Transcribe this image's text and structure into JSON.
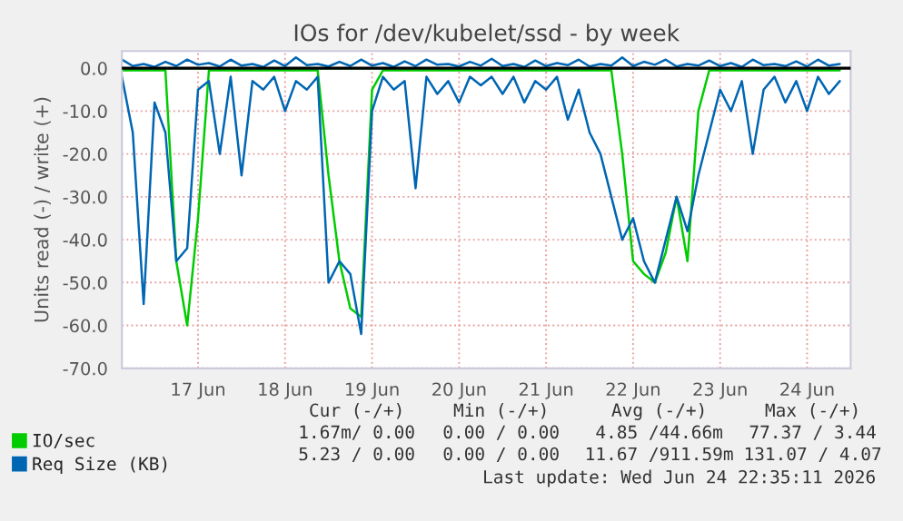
{
  "chart_data": {
    "type": "line",
    "title": "IOs for /dev/kubelet/ssd - by week",
    "ylabel": "Units read (-) / write (+)",
    "x": [
      "2026-06-16T15:00",
      "2026-06-16T18:00",
      "2026-06-16T21:00",
      "2026-06-17T00:00",
      "2026-06-17T03:00",
      "2026-06-17T06:00",
      "2026-06-17T09:00",
      "2026-06-17T12:00",
      "2026-06-17T15:00",
      "2026-06-17T18:00",
      "2026-06-17T21:00",
      "2026-06-18T00:00",
      "2026-06-18T03:00",
      "2026-06-18T06:00",
      "2026-06-18T09:00",
      "2026-06-18T12:00",
      "2026-06-18T15:00",
      "2026-06-18T18:00",
      "2026-06-18T21:00",
      "2026-06-19T00:00",
      "2026-06-19T03:00",
      "2026-06-19T06:00",
      "2026-06-19T09:00",
      "2026-06-19T12:00",
      "2026-06-19T15:00",
      "2026-06-19T18:00",
      "2026-06-19T21:00",
      "2026-06-20T00:00",
      "2026-06-20T03:00",
      "2026-06-20T06:00",
      "2026-06-20T09:00",
      "2026-06-20T12:00",
      "2026-06-20T15:00",
      "2026-06-20T18:00",
      "2026-06-20T21:00",
      "2026-06-21T00:00",
      "2026-06-21T03:00",
      "2026-06-21T06:00",
      "2026-06-21T09:00",
      "2026-06-21T12:00",
      "2026-06-21T15:00",
      "2026-06-21T18:00",
      "2026-06-21T21:00",
      "2026-06-22T00:00",
      "2026-06-22T03:00",
      "2026-06-22T06:00",
      "2026-06-22T09:00",
      "2026-06-22T12:00",
      "2026-06-22T15:00",
      "2026-06-22T18:00",
      "2026-06-22T21:00",
      "2026-06-23T00:00",
      "2026-06-23T03:00",
      "2026-06-23T06:00",
      "2026-06-23T09:00",
      "2026-06-23T12:00",
      "2026-06-23T15:00",
      "2026-06-23T18:00",
      "2026-06-23T21:00",
      "2026-06-24T00:00",
      "2026-06-24T03:00",
      "2026-06-24T06:00",
      "2026-06-24T09:00",
      "2026-06-24T12:00",
      "2026-06-24T15:00",
      "2026-06-24T18:00",
      "2026-06-24T21:00"
    ],
    "series": [
      {
        "name": "IO/sec",
        "color": "#00cc00",
        "values": [
          -0.5,
          -0.5,
          -0.5,
          -0.5,
          -0.5,
          -45,
          -60,
          -35,
          -0.5,
          -0.5,
          -0.5,
          -0.5,
          -0.5,
          -0.5,
          -0.5,
          -0.5,
          -0.5,
          -0.5,
          -0.5,
          -25,
          -45,
          -56,
          -58,
          -5,
          -0.5,
          -0.5,
          -0.5,
          -0.5,
          -0.5,
          -0.5,
          -0.5,
          -0.5,
          -0.5,
          -0.5,
          -0.5,
          -0.5,
          -0.5,
          -0.5,
          -0.5,
          -0.5,
          -0.5,
          -0.5,
          -0.5,
          -0.5,
          -0.5,
          -0.5,
          -20,
          -45,
          -48,
          -50,
          -43,
          -30,
          -45,
          -10,
          -0.5,
          -0.5,
          -0.5,
          -0.5,
          -0.5,
          -0.5,
          -0.5,
          -0.5,
          -0.5,
          -0.5,
          -0.5,
          -0.5,
          -0.5
        ]
      },
      {
        "color": "#00cc00",
        "values": [
          0,
          0,
          0,
          0,
          0,
          0,
          0,
          0,
          0,
          0,
          0,
          0,
          0,
          0,
          0,
          0,
          0,
          0,
          0,
          0,
          0,
          0,
          0,
          0,
          0,
          0,
          0,
          0,
          0,
          0,
          0,
          0,
          0,
          0,
          0,
          0,
          0,
          0,
          0,
          0,
          0,
          0,
          0,
          0,
          0,
          0,
          0,
          0,
          0,
          0,
          0,
          0,
          0,
          0,
          0,
          0,
          0,
          0,
          0,
          0,
          0,
          0,
          0,
          0,
          0,
          0,
          0
        ]
      },
      {
        "name": "Req Size (KB)",
        "color": "#0066b3",
        "values": [
          -2,
          -15,
          -55,
          -8,
          -15,
          -45,
          -42,
          -5,
          -3,
          -20,
          -2,
          -25,
          -3,
          -5,
          -2,
          -10,
          -3,
          -5,
          -2,
          -50,
          -45,
          -48,
          -62,
          -10,
          -2,
          -5,
          -3,
          -28,
          -2,
          -6,
          -3,
          -8,
          -2,
          -4,
          -2,
          -6,
          -2,
          -8,
          -3,
          -5,
          -2,
          -12,
          -5,
          -15,
          -20,
          -30,
          -40,
          -35,
          -45,
          -50,
          -40,
          -30,
          -38,
          -25,
          -15,
          -5,
          -10,
          -3,
          -20,
          -5,
          -2,
          -8,
          -3,
          -10,
          -2,
          -6,
          -3
        ]
      },
      {
        "color": "#0066b3",
        "values": [
          2,
          0.5,
          1,
          0.3,
          1.5,
          0.5,
          2,
          0.8,
          1.2,
          0.4,
          2,
          0.6,
          1,
          0.3,
          1.8,
          0.5,
          2.5,
          0.7,
          1,
          0.4,
          1.5,
          0.5,
          2,
          0.6,
          1.2,
          0.3,
          1.6,
          0.5,
          2,
          0.8,
          1,
          0.4,
          1.5,
          0.6,
          2.2,
          0.5,
          1,
          0.3,
          1.8,
          0.5,
          1.2,
          0.7,
          2,
          0.4,
          1,
          0.6,
          2.5,
          0.5,
          1.5,
          0.8,
          2,
          0.4,
          1,
          0.6,
          1.8,
          0.5,
          1.2,
          0.3,
          2,
          0.7,
          1,
          0.5,
          1.6,
          0.4,
          2,
          0.6,
          1
        ]
      }
    ],
    "xlim": [
      "2026-06-16T15:00",
      "2026-06-25T00:00"
    ],
    "xticks": [
      {
        "value": "2026-06-17T12:00",
        "label": "17 Jun"
      },
      {
        "value": "2026-06-18T12:00",
        "label": "18 Jun"
      },
      {
        "value": "2026-06-19T12:00",
        "label": "19 Jun"
      },
      {
        "value": "2026-06-20T12:00",
        "label": "20 Jun"
      },
      {
        "value": "2026-06-21T12:00",
        "label": "21 Jun"
      },
      {
        "value": "2026-06-22T12:00",
        "label": "22 Jun"
      },
      {
        "value": "2026-06-23T12:00",
        "label": "23 Jun"
      },
      {
        "value": "2026-06-24T12:00",
        "label": "24 Jun"
      }
    ],
    "ylim": [
      -70,
      4
    ],
    "yticks": [
      {
        "value": -70,
        "label": "-70.0"
      },
      {
        "value": -60,
        "label": "-60.0"
      },
      {
        "value": -50,
        "label": "-50.0"
      },
      {
        "value": -40,
        "label": "-40.0"
      },
      {
        "value": -30,
        "label": "-30.0"
      },
      {
        "value": -20,
        "label": "-20.0"
      },
      {
        "value": -10,
        "label": "-10.0"
      },
      {
        "value": 0,
        "label": "0.0"
      }
    ],
    "ref_lines": [
      {
        "axis": "y",
        "value": 0,
        "color": "#000000",
        "line_style": "solid"
      }
    ],
    "grid": true,
    "legend": "bottom",
    "annotations": [
      "Cur (-/+)",
      "Min (-/+)",
      "Avg (-/+)",
      "Max (-/+)",
      "1.67m/ 0.00",
      "0.00 / 0.00",
      "4.85 /44.66m",
      "77.37 / 3.44",
      "5.23 / 0.00",
      "0.00 / 0.00",
      "11.67 /911.59m",
      "131.07 / 4.07",
      "Last update: Wed Jun 24 22:35:11 2026"
    ]
  }
}
